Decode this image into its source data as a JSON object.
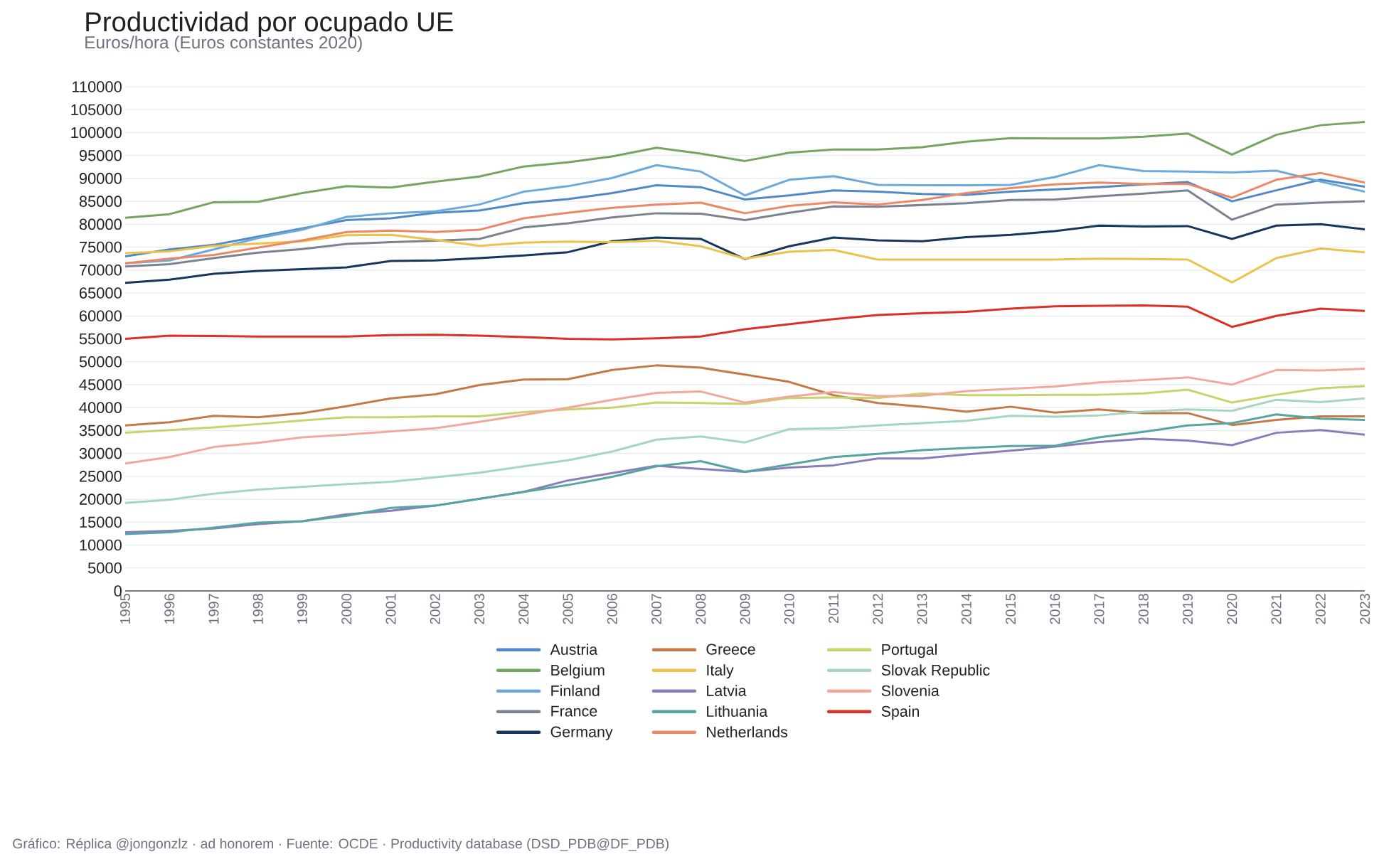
{
  "chart_data": {
    "type": "line",
    "title": "Productividad por ocupado UE",
    "subtitle": "Euros/hora (Euros constantes 2020)",
    "annotations": [
      "Gráfico: Réplica @jongonzlz · ad honorem  ·  Fuente: OCDE · Productivity database (DSD_PDB@DF_PDB)"
    ],
    "x": [
      1995,
      1996,
      1997,
      1998,
      1999,
      2000,
      2001,
      2002,
      2003,
      2004,
      2005,
      2006,
      2007,
      2008,
      2009,
      2010,
      2011,
      2012,
      2013,
      2014,
      2015,
      2016,
      2017,
      2018,
      2019,
      2020,
      2021,
      2022,
      2023
    ],
    "xlim": [
      1995,
      2023
    ],
    "xticks": [
      1995,
      1996,
      1997,
      1998,
      1999,
      2000,
      2001,
      2002,
      2003,
      2004,
      2005,
      2006,
      2007,
      2008,
      2009,
      2010,
      2011,
      2012,
      2013,
      2014,
      2015,
      2016,
      2017,
      2018,
      2019,
      2020,
      2021,
      2022,
      2023
    ],
    "ylim": [
      0,
      110000
    ],
    "yticks": [
      0,
      5000,
      10000,
      15000,
      20000,
      25000,
      30000,
      35000,
      40000,
      45000,
      50000,
      55000,
      60000,
      65000,
      70000,
      75000,
      80000,
      85000,
      90000,
      95000,
      100000,
      105000,
      110000
    ],
    "grid": "y",
    "legend": "bottom",
    "marker": "none",
    "line_style": "solid",
    "series": [
      {
        "name": "Austria",
        "color": "#5089c6",
        "values": [
          73000,
          74500,
          75500,
          77300,
          79100,
          80900,
          81300,
          82500,
          83000,
          84600,
          85500,
          86800,
          88500,
          88100,
          85400,
          86300,
          87400,
          87100,
          86600,
          86400,
          87100,
          87600,
          88100,
          88700,
          89200,
          85000,
          87400,
          89700,
          88200
        ]
      },
      {
        "name": "Belgium",
        "color": "#74a65f",
        "values": [
          81400,
          82200,
          84800,
          84900,
          86800,
          88300,
          88000,
          89300,
          90400,
          92600,
          93500,
          94800,
          96700,
          95400,
          93800,
          95600,
          96300,
          96300,
          96800,
          98000,
          98800,
          98700,
          98700,
          99100,
          99800,
          95200,
          99500,
          101600,
          102300
        ]
      },
      {
        "name": "Finland",
        "color": "#6ca9dd",
        "values": [
          71500,
          72100,
          74500,
          77000,
          78800,
          81600,
          82400,
          82800,
          84300,
          87100,
          88300,
          90100,
          92900,
          91500,
          86300,
          89700,
          90500,
          88600,
          88500,
          88500,
          88600,
          90300,
          92900,
          91600,
          91500,
          91300,
          91700,
          89300,
          87100
        ]
      },
      {
        "name": "France",
        "color": "#7a8490",
        "values": [
          70800,
          71300,
          72600,
          73800,
          74600,
          75700,
          76100,
          76400,
          76800,
          79300,
          80200,
          81500,
          82400,
          82300,
          80900,
          82500,
          83900,
          83800,
          84200,
          84600,
          85300,
          85400,
          86100,
          86700,
          87400,
          81000,
          84300,
          84700,
          85000
        ]
      },
      {
        "name": "Germany",
        "color": "#16365c",
        "values": [
          67200,
          67900,
          69200,
          69800,
          70200,
          70600,
          72000,
          72100,
          72600,
          73200,
          73900,
          76300,
          77100,
          76800,
          72400,
          75200,
          77100,
          76500,
          76300,
          77200,
          77700,
          78500,
          79700,
          79500,
          79600,
          76800,
          79700,
          80000,
          78900
        ]
      },
      {
        "name": "Greece",
        "color": "#c47a48",
        "values": [
          36100,
          36800,
          38200,
          37900,
          38800,
          40300,
          42000,
          42900,
          44900,
          46100,
          46200,
          48200,
          49200,
          48700,
          47200,
          45600,
          42700,
          41000,
          40200,
          39100,
          40200,
          38900,
          39600,
          38800,
          38800,
          36200,
          37300,
          38100,
          38100
        ]
      },
      {
        "name": "Italy",
        "color": "#ebc24a",
        "values": [
          73700,
          74100,
          75300,
          75800,
          76300,
          77600,
          77700,
          76600,
          75300,
          76000,
          76200,
          76100,
          76400,
          75200,
          72500,
          74000,
          74400,
          72300,
          72300,
          72300,
          72300,
          72300,
          72500,
          72400,
          72300,
          67300,
          72600,
          74700,
          73900
        ]
      },
      {
        "name": "Latvia",
        "color": "#8a7dbc",
        "values": [
          12800,
          13100,
          13600,
          14600,
          15200,
          16700,
          17500,
          18600,
          20100,
          21600,
          24100,
          25700,
          27300,
          26600,
          26000,
          26900,
          27400,
          28900,
          28900,
          29800,
          30600,
          31500,
          32500,
          33200,
          32800,
          31800,
          34500,
          35100,
          34100
        ]
      },
      {
        "name": "Lithuania",
        "color": "#56a5a2",
        "values": [
          12400,
          12800,
          13800,
          14900,
          15200,
          16400,
          18100,
          18600,
          20100,
          21600,
          23100,
          24900,
          27200,
          28300,
          26000,
          27600,
          29200,
          29900,
          30700,
          31200,
          31600,
          31700,
          33500,
          34700,
          36100,
          36600,
          38500,
          37600,
          37300
        ]
      },
      {
        "name": "Netherlands",
        "color": "#eb8866",
        "values": [
          71500,
          72500,
          73300,
          74900,
          76500,
          78300,
          78600,
          78300,
          78800,
          81300,
          82500,
          83600,
          84300,
          84700,
          82400,
          84000,
          84800,
          84300,
          85300,
          86800,
          87900,
          88700,
          89100,
          88800,
          88800,
          85800,
          89700,
          91200,
          89100
        ]
      },
      {
        "name": "Portugal",
        "color": "#c5d46c",
        "values": [
          34500,
          35100,
          35700,
          36400,
          37200,
          37900,
          37900,
          38100,
          38100,
          39000,
          39600,
          40000,
          41100,
          41000,
          40800,
          42100,
          42200,
          42100,
          43100,
          42700,
          42700,
          42800,
          42800,
          43100,
          43900,
          41100,
          42800,
          44200,
          44700
        ]
      },
      {
        "name": "Slovak Republic",
        "color": "#a5d6c4",
        "values": [
          19200,
          19900,
          21200,
          22100,
          22700,
          23300,
          23800,
          24800,
          25800,
          27200,
          28500,
          30400,
          33000,
          33700,
          32400,
          35300,
          35500,
          36100,
          36600,
          37100,
          38200,
          38000,
          38300,
          39100,
          39600,
          39300,
          41700,
          41200,
          42000
        ]
      },
      {
        "name": "Slovenia",
        "color": "#f2a89b",
        "values": [
          27800,
          29200,
          31400,
          32300,
          33500,
          34100,
          34800,
          35500,
          36900,
          38400,
          40000,
          41700,
          43200,
          43500,
          41100,
          42400,
          43400,
          42500,
          42600,
          43600,
          44100,
          44600,
          45500,
          46000,
          46600,
          45000,
          48200,
          48100,
          48500
        ]
      },
      {
        "name": "Spain",
        "color": "#dc3027",
        "values": [
          55000,
          55700,
          55600,
          55500,
          55500,
          55500,
          55800,
          55900,
          55700,
          55400,
          55000,
          54900,
          55100,
          55500,
          57100,
          58200,
          59300,
          60200,
          60600,
          60900,
          61600,
          62100,
          62200,
          62300,
          62000,
          57600,
          60000,
          61600,
          61100
        ]
      }
    ]
  }
}
